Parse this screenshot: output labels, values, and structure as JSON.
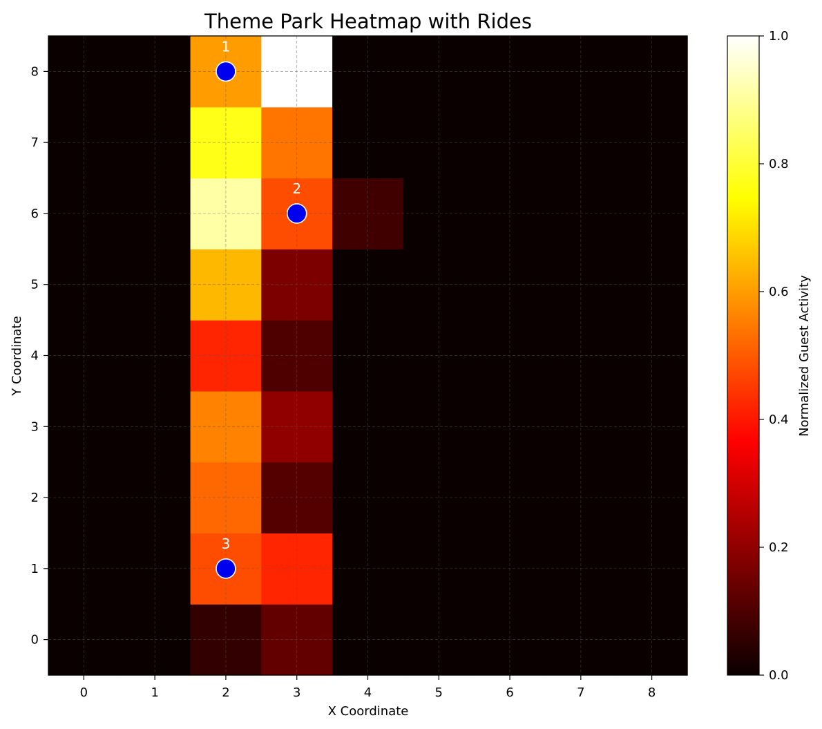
{
  "chart_data": {
    "type": "heatmap",
    "title": "Theme Park Heatmap with Rides",
    "xlabel": "X Coordinate",
    "ylabel": "Y Coordinate",
    "x": [
      0,
      1,
      2,
      3,
      4,
      5,
      6,
      7,
      8
    ],
    "y": [
      0,
      1,
      2,
      3,
      4,
      5,
      6,
      7,
      8
    ],
    "xlim": [
      -0.5,
      8.5
    ],
    "ylim": [
      -0.5,
      8.5
    ],
    "grid": true,
    "colormap": "hot",
    "colorbar": {
      "label": "Normalized Guest Activity",
      "range": [
        0,
        1
      ],
      "ticks": [
        0.0,
        0.2,
        0.4,
        0.6,
        0.8,
        1.0
      ],
      "tick_labels": [
        "0.0",
        "0.2",
        "0.4",
        "0.6",
        "0.8",
        "1.0"
      ]
    },
    "values": [
      [
        0,
        0,
        0.06,
        0.13,
        0,
        0,
        0,
        0,
        0
      ],
      [
        0,
        0,
        0.48,
        0.42,
        0,
        0,
        0,
        0,
        0
      ],
      [
        0,
        0,
        0.52,
        0.11,
        0,
        0,
        0,
        0,
        0
      ],
      [
        0,
        0,
        0.56,
        0.2,
        0,
        0,
        0,
        0,
        0
      ],
      [
        0,
        0,
        0.42,
        0.1,
        0,
        0,
        0,
        0,
        0
      ],
      [
        0,
        0,
        0.64,
        0.17,
        0,
        0,
        0,
        0,
        0
      ],
      [
        0,
        0,
        0.91,
        0.48,
        0.08,
        0,
        0,
        0,
        0
      ],
      [
        0,
        0,
        0.77,
        0.54,
        0,
        0,
        0,
        0,
        0
      ],
      [
        0,
        0,
        0.6,
        1.0,
        0,
        0,
        0,
        0,
        0
      ]
    ],
    "rides": [
      {
        "label": "1",
        "x": 2,
        "y": 8
      },
      {
        "label": "2",
        "x": 3,
        "y": 6
      },
      {
        "label": "3",
        "x": 2,
        "y": 1
      }
    ],
    "ride_color": "#0000ee"
  }
}
